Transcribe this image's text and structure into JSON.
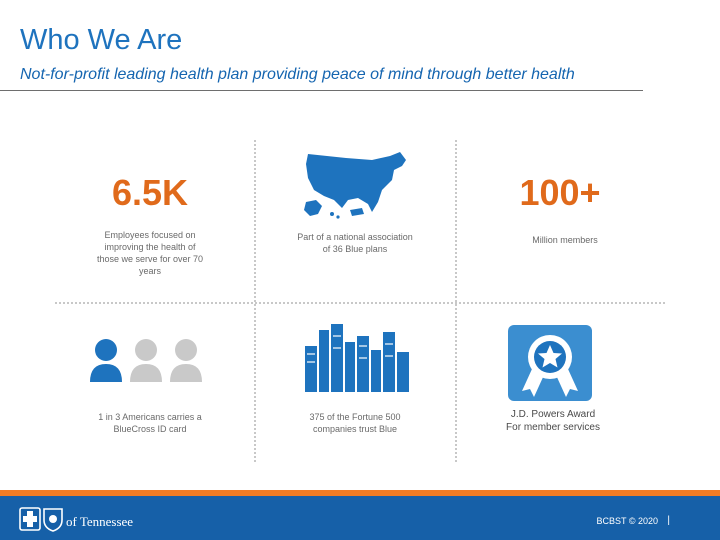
{
  "header": {
    "title": "Who We Are",
    "subtitle": "Not-for-profit leading health plan providing peace of mind through better health"
  },
  "stats": {
    "employees": {
      "value": "6.5K",
      "caption": [
        "Employees focused on",
        "improving the health of",
        "those we serve for over 70",
        "years"
      ]
    },
    "association": {
      "caption": [
        "Part of a national association",
        "of 36 Blue plans"
      ],
      "icon": "usa-map-icon"
    },
    "members": {
      "value": "100+",
      "caption": "Million members"
    },
    "id_card": {
      "caption": [
        "1 in 3 Americans carries a",
        "BlueCross ID card"
      ],
      "icon": "people-icon"
    },
    "fortune": {
      "caption": [
        "375 of the Fortune 500",
        "companies trust Blue"
      ],
      "icon": "city-skyline-icon"
    },
    "award": {
      "caption": [
        "J.D. Powers Award",
        "For member services"
      ],
      "icon": "award-ribbon-icon"
    }
  },
  "footer": {
    "logo_text": "of Tennessee",
    "copyright": "BCBST © 2020",
    "separator": "|"
  },
  "colors": {
    "accent_blue": "#1e73be",
    "orange": "#f07c26",
    "footer_blue": "#1660a8",
    "gray_person": "#c9c9c9"
  }
}
